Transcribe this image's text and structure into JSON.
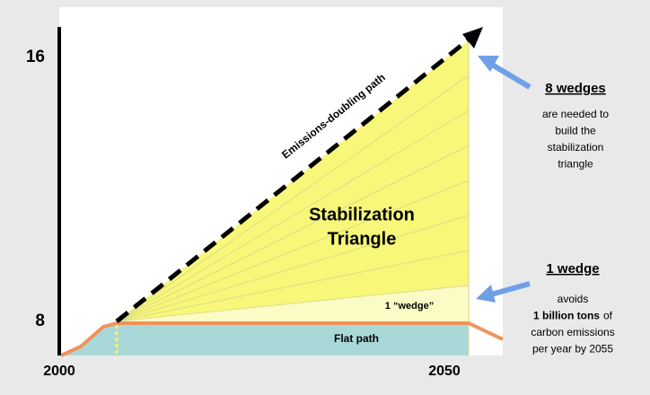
{
  "y_axis": {
    "ticks": [
      "16",
      "8"
    ]
  },
  "x_axis": {
    "ticks": [
      "2000",
      "2050"
    ]
  },
  "labels": {
    "doubling_path": "Emissions-doubling path",
    "triangle": [
      "Stabilization",
      "Triangle"
    ],
    "wedge": "1 “wedge”",
    "flat_path": "Flat path"
  },
  "callouts": [
    {
      "title": "8 wedges",
      "lines": [
        "are needed to",
        "build the",
        "stabilization",
        "triangle"
      ]
    },
    {
      "title": "1 wedge",
      "lines": [
        "avoids",
        [
          "1 billion tons",
          "of"
        ],
        "carbon emissions",
        "per year by 2055"
      ]
    }
  ]
}
